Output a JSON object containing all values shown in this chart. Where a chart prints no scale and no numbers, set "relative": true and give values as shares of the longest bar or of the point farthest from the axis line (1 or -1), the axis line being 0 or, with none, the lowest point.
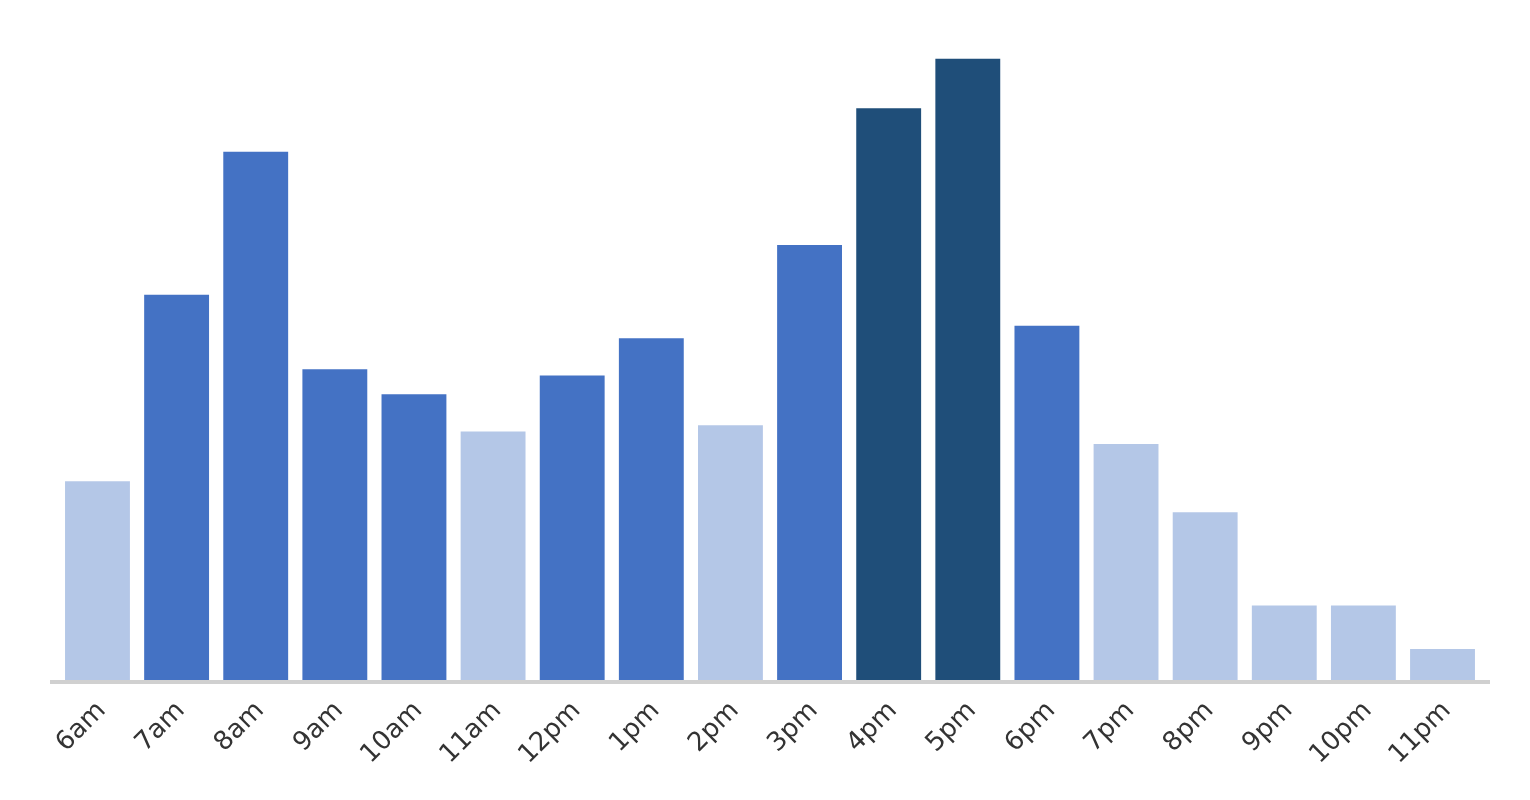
{
  "chart_data": {
    "type": "bar",
    "relative": true,
    "categories": [
      "6am",
      "7am",
      "8am",
      "9am",
      "10am",
      "11am",
      "12pm",
      "1pm",
      "2pm",
      "3pm",
      "4pm",
      "5pm",
      "6pm",
      "7pm",
      "8pm",
      "9pm",
      "10pm",
      "11pm"
    ],
    "values": [
      0.32,
      0.62,
      0.85,
      0.5,
      0.46,
      0.4,
      0.49,
      0.55,
      0.41,
      0.7,
      0.92,
      1,
      0.57,
      0.38,
      0.27,
      0.12,
      0.12,
      0.05
    ],
    "colors": [
      "#b4c7e7",
      "#4472c4",
      "#4472c4",
      "#4472c4",
      "#4472c4",
      "#b4c7e7",
      "#4472c4",
      "#4472c4",
      "#b4c7e7",
      "#4472c4",
      "#1f4e79",
      "#1f4e79",
      "#4472c4",
      "#b4c7e7",
      "#b4c7e7",
      "#b4c7e7",
      "#b4c7e7",
      "#b4c7e7"
    ]
  }
}
